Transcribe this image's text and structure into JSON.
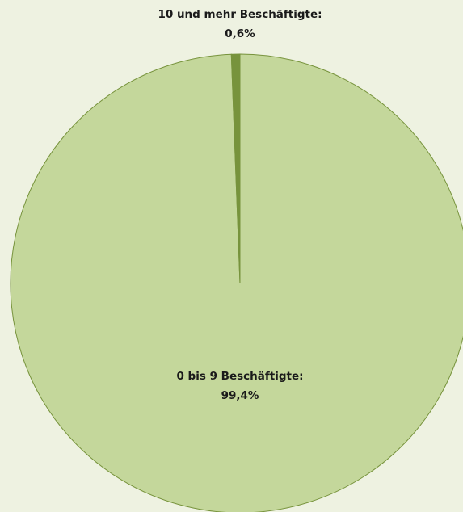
{
  "chart_data": {
    "type": "pie",
    "categories": [
      "0 bis 9 Beschäftigte:",
      "10 und mehr Beschäftigte:"
    ],
    "values": [
      99.4,
      0.6
    ],
    "value_labels": [
      "99,4%",
      "0,6%"
    ],
    "colors": [
      "#c4d79b",
      "#77933c"
    ],
    "start_angle": 0,
    "direction": "clockwise"
  }
}
